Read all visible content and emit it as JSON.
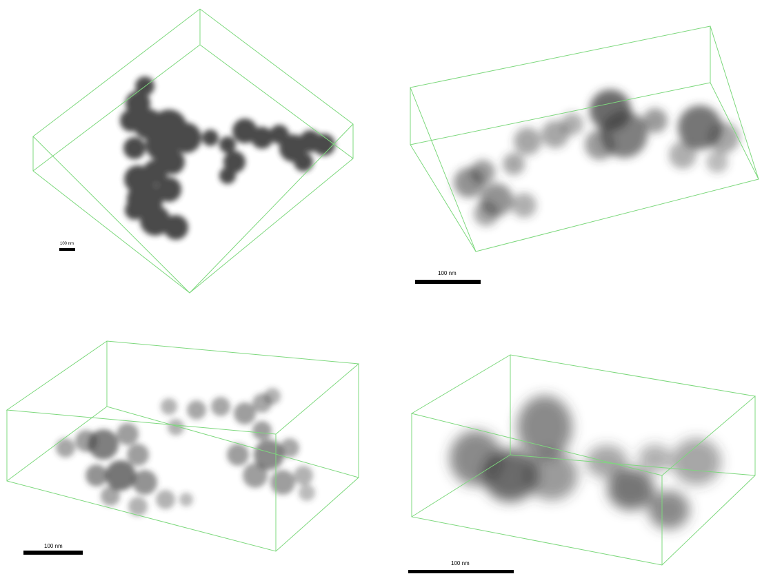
{
  "panels": [
    {
      "id": "top-left",
      "scale_label": "100 nm"
    },
    {
      "id": "top-right",
      "scale_label": "100 nm"
    },
    {
      "id": "bottom-left",
      "scale_label": "100 nm"
    },
    {
      "id": "bottom-right",
      "scale_label": "100 nm"
    }
  ],
  "colors": {
    "bounding_box": "#7dd87d",
    "particle": "#3a3a3a",
    "scale_bar": "#000000",
    "background": "#ffffff"
  }
}
